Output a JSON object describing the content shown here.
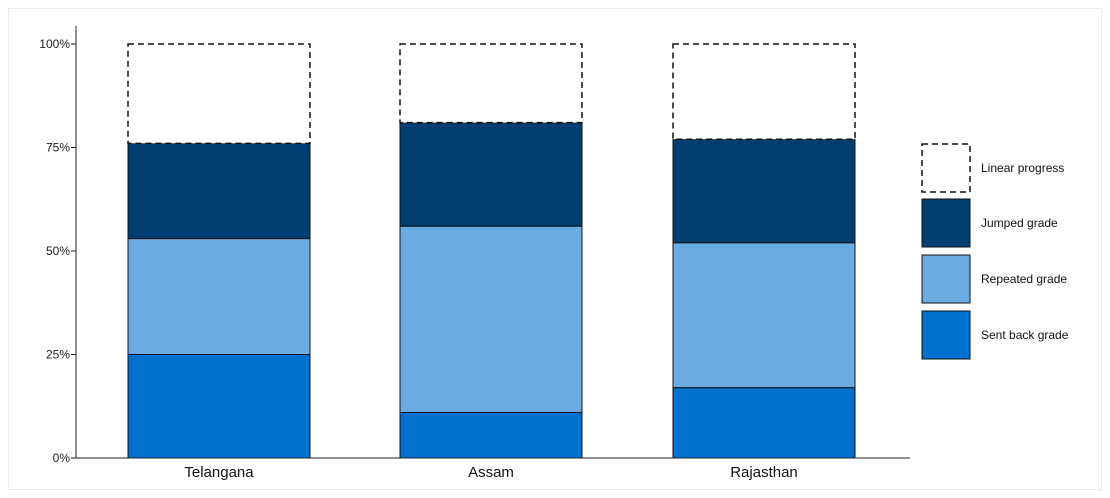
{
  "chart_data": {
    "type": "bar",
    "stacked": true,
    "title": "",
    "xlabel": "",
    "ylabel": "",
    "categories": [
      "Telangana",
      "Assam",
      "Rajasthan"
    ],
    "ylim": [
      0,
      100
    ],
    "yticks": [
      0,
      25,
      50,
      75,
      100
    ],
    "ytick_labels": [
      "0%",
      "25%",
      "50%",
      "75%",
      "100%"
    ],
    "grid": false,
    "legend_position": "right",
    "series": [
      {
        "name": "Sent back grade",
        "values": [
          25,
          11,
          17
        ],
        "color": "#0071CE",
        "dashed": false
      },
      {
        "name": "Repeated grade",
        "values": [
          28,
          45,
          35
        ],
        "color": "#6AACE2",
        "dashed": false
      },
      {
        "name": "Jumped grade",
        "values": [
          23,
          25,
          25
        ],
        "color": "#003D71",
        "dashed": false
      },
      {
        "name": "Linear progress",
        "values": [
          24,
          19,
          23
        ],
        "color": "#FFFFFF",
        "dashed": true
      }
    ],
    "legend_order": [
      "Linear progress",
      "Jumped grade",
      "Repeated grade",
      "Sent back grade"
    ]
  }
}
